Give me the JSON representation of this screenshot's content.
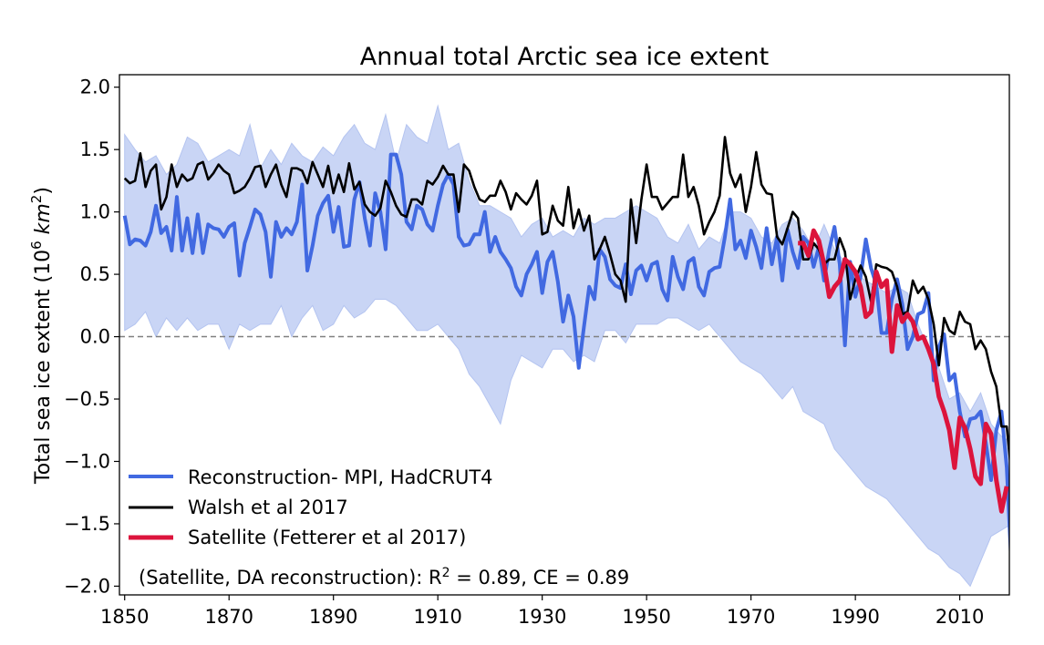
{
  "chart_data": {
    "type": "line",
    "title": "Annual total Arctic sea ice extent",
    "xlabel": "",
    "ylabel": "Total sea ice extent (10^6 km^2)",
    "ylabel_parts": {
      "pre": "Total sea ice extent (10",
      "sup": "6",
      "mid": " ",
      "unit": "km",
      "sup2": "2",
      "post": ")"
    },
    "xlim": [
      1849,
      2019.5
    ],
    "ylim": [
      -2.07,
      2.1
    ],
    "xticks": [
      1850,
      1870,
      1890,
      1910,
      1930,
      1950,
      1970,
      1990,
      2010
    ],
    "xtick_labels": [
      "1850",
      "1870",
      "1890",
      "1910",
      "1930",
      "1950",
      "1970",
      "1990",
      "2010"
    ],
    "yticks": [
      2.0,
      1.5,
      1.0,
      0.5,
      0.0,
      -0.5,
      -1.0,
      -1.5,
      -2.0
    ],
    "ytick_labels": [
      "2.0",
      "1.5",
      "1.0",
      "0.5",
      "0.0",
      "−0.5",
      "−1.0",
      "−1.5",
      "−2.0"
    ],
    "grid": false,
    "reference_line": {
      "y": 0.0,
      "style": "dashed",
      "color": "#808080"
    },
    "legend": {
      "placement": "lower-left",
      "entries": [
        {
          "label": "Reconstruction- MPI, HadCRUT4",
          "color": "#4169e1"
        },
        {
          "label": "Walsh et al 2017",
          "color": "#000000"
        },
        {
          "label": "Satellite (Fetterer et al 2017)",
          "color": "#dc143c"
        }
      ]
    },
    "annotation": {
      "pre": "(Satellite, DA reconstruction): R",
      "sup": "2",
      "post": " = 0.89, CE = 0.89"
    },
    "band": {
      "name": "Reconstruction uncertainty",
      "color": "#c9d5f5",
      "x_start": 1850,
      "step": 2,
      "upper": [
        1.62,
        1.5,
        1.4,
        1.45,
        1.3,
        1.38,
        1.6,
        1.55,
        1.4,
        1.45,
        1.5,
        1.45,
        1.7,
        1.35,
        1.5,
        1.38,
        1.55,
        1.45,
        1.4,
        1.52,
        1.45,
        1.6,
        1.7,
        1.55,
        1.5,
        1.78,
        1.4,
        1.7,
        1.6,
        1.55,
        1.85,
        1.5,
        1.55,
        1.25,
        1.05,
        1.05,
        1.0,
        0.95,
        0.8,
        0.9,
        0.95,
        0.8,
        0.85,
        0.8,
        0.95,
        0.9,
        0.95,
        0.95,
        1.0,
        1.05,
        1.0,
        0.95,
        0.8,
        0.75,
        0.9,
        0.7,
        0.8,
        0.75,
        1.0,
        1.0,
        0.95,
        0.8,
        0.75,
        0.9,
        0.95,
        0.85,
        0.7,
        0.9,
        0.7,
        0.6,
        0.5,
        0.45,
        0.4,
        0.35,
        0.4,
        0.35,
        0.1,
        -0.1,
        -0.25,
        -0.5,
        -0.45,
        -0.6,
        -0.45,
        -0.7,
        -0.8,
        -0.85
      ],
      "lower": [
        0.05,
        0.1,
        0.2,
        0.0,
        0.15,
        0.05,
        0.15,
        0.05,
        0.1,
        0.1,
        -0.1,
        0.1,
        0.05,
        0.1,
        0.1,
        0.25,
        0.0,
        0.15,
        0.25,
        0.05,
        0.1,
        0.25,
        0.15,
        0.2,
        0.3,
        0.3,
        0.25,
        0.15,
        0.05,
        0.05,
        0.1,
        0.0,
        -0.1,
        -0.3,
        -0.4,
        -0.55,
        -0.7,
        -0.35,
        -0.15,
        -0.2,
        -0.25,
        -0.1,
        -0.1,
        -0.2,
        -0.15,
        -0.2,
        0.05,
        0.05,
        -0.05,
        0.1,
        0.1,
        0.1,
        0.15,
        0.15,
        0.1,
        0.05,
        0.1,
        0.0,
        -0.1,
        -0.2,
        -0.25,
        -0.3,
        -0.4,
        -0.5,
        -0.4,
        -0.6,
        -0.65,
        -0.7,
        -0.9,
        -1.0,
        -1.1,
        -1.2,
        -1.25,
        -1.3,
        -1.4,
        -1.5,
        -1.6,
        -1.7,
        -1.75,
        -1.85,
        -1.9,
        -2.0,
        -1.8,
        -1.6,
        -1.55,
        -1.5
      ]
    },
    "x_start": 1850,
    "series": [
      {
        "name": "Reconstruction- MPI, HadCRUT4",
        "color": "#4169e1",
        "x_start": 1850,
        "values": [
          0.97,
          0.74,
          0.78,
          0.77,
          0.73,
          0.84,
          1.05,
          0.83,
          0.88,
          0.69,
          1.12,
          0.69,
          0.95,
          0.67,
          0.98,
          0.67,
          0.9,
          0.87,
          0.86,
          0.8,
          0.88,
          0.91,
          0.49,
          0.75,
          0.88,
          1.02,
          0.98,
          0.84,
          0.48,
          0.92,
          0.8,
          0.87,
          0.82,
          0.92,
          1.22,
          0.53,
          0.73,
          0.97,
          1.07,
          1.13,
          0.84,
          1.04,
          0.72,
          0.73,
          1.1,
          1.24,
          0.95,
          0.73,
          1.15,
          1.0,
          0.7,
          1.46,
          1.46,
          1.3,
          0.92,
          0.86,
          1.05,
          1.02,
          0.9,
          0.85,
          1.05,
          1.22,
          1.3,
          1.22,
          0.8,
          0.73,
          0.74,
          0.82,
          0.82,
          1.0,
          0.68,
          0.8,
          0.68,
          0.62,
          0.55,
          0.4,
          0.33,
          0.5,
          0.58,
          0.68,
          0.35,
          0.6,
          0.68,
          0.44,
          0.12,
          0.33,
          0.16,
          -0.25,
          0.08,
          0.4,
          0.3,
          0.7,
          0.64,
          0.46,
          0.41,
          0.39,
          0.58,
          0.34,
          0.53,
          0.57,
          0.45,
          0.58,
          0.6,
          0.38,
          0.29,
          0.64,
          0.48,
          0.38,
          0.6,
          0.63,
          0.4,
          0.33,
          0.52,
          0.55,
          0.56,
          0.8,
          1.1,
          0.7,
          0.77,
          0.63,
          0.85,
          0.72,
          0.55,
          0.87,
          0.58,
          0.8,
          0.45,
          0.86,
          0.68,
          0.55,
          0.8,
          0.75,
          0.56,
          0.72,
          0.45,
          0.7,
          0.88,
          0.58,
          -0.07,
          0.6,
          0.32,
          0.48,
          0.78,
          0.55,
          0.42,
          0.03,
          0.03,
          0.3,
          0.46,
          0.26,
          -0.1,
          0.0,
          0.18,
          0.2,
          0.35,
          -0.35,
          -0.08,
          0.02,
          -0.35,
          -0.3,
          -0.6,
          -0.8,
          -0.66,
          -0.65,
          -0.6,
          -0.85,
          -1.15,
          -0.75,
          -0.6,
          -1.05,
          -1.93,
          -1.1,
          -1.08
        ]
      },
      {
        "name": "Walsh et al 2017",
        "color": "#000000",
        "x_start": 1850,
        "values": [
          1.27,
          1.23,
          1.25,
          1.47,
          1.2,
          1.33,
          1.38,
          1.02,
          1.12,
          1.38,
          1.2,
          1.3,
          1.25,
          1.27,
          1.38,
          1.4,
          1.26,
          1.31,
          1.38,
          1.33,
          1.3,
          1.15,
          1.17,
          1.2,
          1.27,
          1.36,
          1.37,
          1.2,
          1.3,
          1.38,
          1.22,
          1.12,
          1.35,
          1.35,
          1.33,
          1.23,
          1.4,
          1.3,
          1.2,
          1.37,
          1.15,
          1.3,
          1.16,
          1.39,
          1.18,
          1.24,
          1.06,
          1.0,
          0.97,
          1.03,
          1.25,
          1.16,
          1.05,
          0.98,
          0.96,
          1.1,
          1.1,
          1.06,
          1.25,
          1.22,
          1.28,
          1.37,
          1.3,
          1.3,
          1.0,
          1.38,
          1.33,
          1.2,
          1.1,
          1.08,
          1.13,
          1.13,
          1.25,
          1.16,
          1.02,
          1.15,
          1.1,
          1.06,
          1.13,
          1.25,
          0.82,
          0.84,
          1.05,
          0.93,
          0.89,
          1.2,
          0.87,
          1.02,
          0.85,
          0.97,
          0.62,
          0.7,
          0.8,
          0.66,
          0.5,
          0.45,
          0.28,
          1.1,
          0.75,
          1.1,
          1.38,
          1.12,
          1.12,
          1.02,
          1.07,
          1.12,
          1.12,
          1.46,
          1.12,
          1.2,
          1.05,
          0.82,
          0.92,
          1.0,
          1.13,
          1.6,
          1.31,
          1.2,
          1.3,
          1.0,
          1.2,
          1.48,
          1.22,
          1.15,
          1.14,
          0.8,
          0.74,
          0.87,
          1.0,
          0.95,
          0.62,
          0.62,
          0.75,
          0.7,
          0.58,
          0.62,
          0.62,
          0.79,
          0.68,
          0.3,
          0.46,
          0.57,
          0.48,
          0.28,
          0.58,
          0.56,
          0.55,
          0.52,
          0.4,
          0.18,
          0.2,
          0.45,
          0.35,
          0.4,
          0.3,
          0.1,
          -0.23,
          0.15,
          0.05,
          0.02,
          0.2,
          0.12,
          0.1,
          -0.1,
          -0.03,
          -0.1,
          -0.28,
          -0.4,
          -0.72,
          -0.72,
          -1.15,
          -0.52,
          -0.55,
          -0.95,
          -1.12,
          -0.7,
          -0.9,
          -1.4
        ]
      },
      {
        "name": "Satellite (Fetterer et al 2017)",
        "color": "#dc143c",
        "x_start": 1979,
        "values": [
          0.75,
          0.75,
          0.65,
          0.85,
          0.77,
          0.58,
          0.32,
          0.4,
          0.45,
          0.62,
          0.58,
          0.52,
          0.4,
          0.16,
          0.2,
          0.52,
          0.4,
          0.45,
          -0.12,
          0.25,
          0.12,
          0.18,
          0.12,
          -0.02,
          0.0,
          -0.1,
          -0.22,
          -0.48,
          -0.6,
          -0.75,
          -1.05,
          -0.65,
          -0.73,
          -0.9,
          -1.12,
          -1.18,
          -0.7,
          -0.78,
          -1.15,
          -1.4,
          -1.2
        ]
      }
    ]
  }
}
